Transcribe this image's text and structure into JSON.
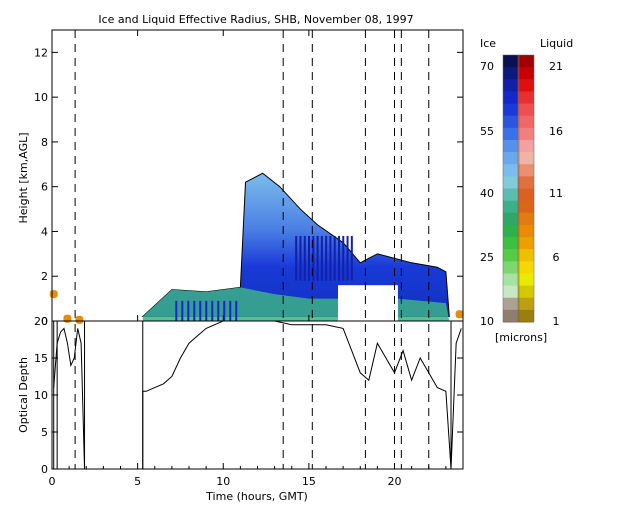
{
  "chart_data": [
    {
      "type": "heatmap",
      "title": "Ice and Liquid Effective Radius, SHB, November 08, 1997",
      "ylabel": "Height [km,AGL]",
      "xlim": [
        0,
        24
      ],
      "ylim": [
        0,
        13
      ],
      "yticks": [
        0,
        2,
        4,
        6,
        8,
        10,
        12
      ],
      "ice_cloud_region": [
        {
          "x": 5.3,
          "y": 0.2
        },
        {
          "x": 7.0,
          "y": 1.4
        },
        {
          "x": 9.0,
          "y": 1.3
        },
        {
          "x": 11.0,
          "y": 1.5
        },
        {
          "x": 11.3,
          "y": 6.2
        },
        {
          "x": 12.3,
          "y": 6.6
        },
        {
          "x": 13.3,
          "y": 6.0
        },
        {
          "x": 14.5,
          "y": 5.0
        },
        {
          "x": 15.5,
          "y": 4.3
        },
        {
          "x": 17.0,
          "y": 3.5
        },
        {
          "x": 18.0,
          "y": 2.6
        },
        {
          "x": 19.0,
          "y": 3.0
        },
        {
          "x": 21.0,
          "y": 2.6
        },
        {
          "x": 22.5,
          "y": 2.4
        },
        {
          "x": 23.0,
          "y": 2.2
        },
        {
          "x": 23.2,
          "y": 0.2
        }
      ],
      "liquid_points": [
        {
          "x": 0.1,
          "y": 1.2,
          "r": 6
        },
        {
          "x": 0.9,
          "y": 0.1,
          "r": 6
        },
        {
          "x": 1.6,
          "y": 0.05,
          "r": 6
        },
        {
          "x": 23.8,
          "y": 0.3,
          "r": 6
        }
      ],
      "dashed_times": [
        1.35,
        13.5,
        15.2,
        18.3,
        20.0,
        20.4,
        22.0
      ],
      "blank_region": {
        "x0": 16.7,
        "x1": 20.2,
        "y0": 0,
        "y1": 1.6
      }
    },
    {
      "type": "line",
      "xlabel": "Time (hours, GMT)",
      "ylabel": "Optical Depth",
      "xlim": [
        0,
        24
      ],
      "ylim": [
        0,
        20
      ],
      "xticks": [
        0,
        5,
        10,
        15,
        20
      ],
      "yticks": [
        0,
        5,
        10,
        15,
        20
      ],
      "x": [
        0.1,
        0.3,
        0.5,
        0.7,
        0.9,
        1.1,
        1.3,
        1.5,
        1.7,
        1.9,
        5.3,
        5.5,
        6.0,
        6.5,
        7.0,
        7.5,
        8.0,
        8.5,
        9.0,
        9.5,
        10.0,
        10.5,
        11.0,
        12.0,
        13.0,
        14.0,
        15.0,
        16.0,
        17.0,
        17.5,
        18.0,
        18.5,
        19.0,
        19.5,
        20.0,
        20.5,
        21.0,
        21.5,
        22.0,
        22.5,
        23.0,
        23.3,
        23.6,
        23.9
      ],
      "values": [
        11,
        17,
        18.5,
        19,
        17,
        14,
        15,
        19,
        17,
        0,
        10.5,
        10.5,
        11,
        11.5,
        12.5,
        15,
        17,
        18,
        19,
        19.5,
        20,
        20,
        20,
        20,
        20,
        19.5,
        19.5,
        19.5,
        19,
        16,
        13,
        12,
        17,
        15,
        13,
        16,
        12,
        15,
        13,
        11,
        10.5,
        0,
        17,
        19
      ]
    }
  ],
  "colorbar": {
    "ice_header": "Ice",
    "liquid_header": "Liquid",
    "units": "[microns]",
    "ice_labels": [
      "70",
      "55",
      "40",
      "25",
      "10"
    ],
    "liquid_labels": [
      "21",
      "16",
      "11",
      "6",
      "1"
    ],
    "ice_colors": [
      "#0a1050",
      "#0c1a80",
      "#1020a8",
      "#1428c8",
      "#1a3ad8",
      "#2a55e0",
      "#3a70e8",
      "#5590ea",
      "#6aa8ee",
      "#7cbcec",
      "#80ccd8",
      "#5cbcb0",
      "#3cb088",
      "#2ea868",
      "#2eb04a",
      "#3cc040",
      "#54cc44",
      "#7ed670",
      "#a6e2a0",
      "#c8e8c4",
      "#aca294",
      "#8e7e70"
    ],
    "liquid_colors": [
      "#a00000",
      "#c80000",
      "#dd1010",
      "#e83030",
      "#ec5050",
      "#ee6868",
      "#f08080",
      "#f2a0a0",
      "#f0b4a4",
      "#e89070",
      "#e07040",
      "#dc6020",
      "#d86818",
      "#e07c10",
      "#e88c08",
      "#eca000",
      "#f0c000",
      "#f4d800",
      "#eaea00",
      "#d6c800",
      "#bca010",
      "#9a7e10"
    ]
  }
}
